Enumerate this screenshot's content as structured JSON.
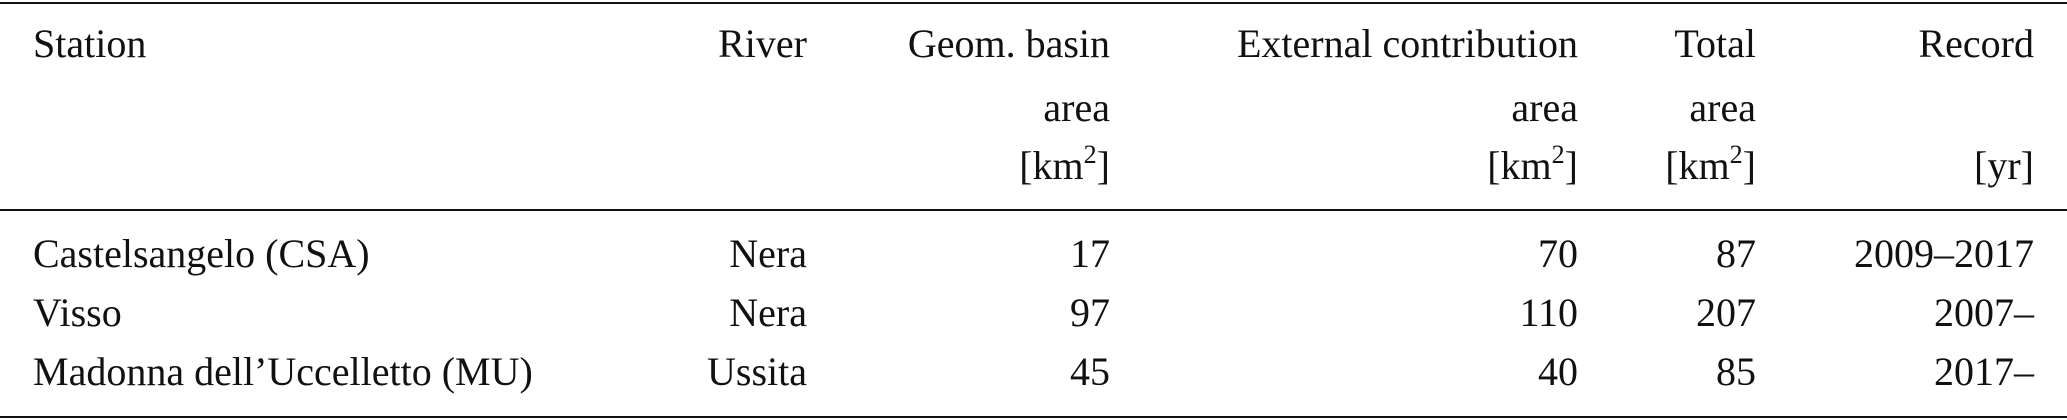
{
  "table": {
    "headers": [
      {
        "lines": [
          "Station"
        ]
      },
      {
        "lines": [
          "River"
        ]
      },
      {
        "lines": [
          "Geom. basin",
          "area"
        ],
        "unit": "km",
        "unit_sup": "2"
      },
      {
        "lines": [
          "External contribution",
          "area"
        ],
        "unit": "km",
        "unit_sup": "2"
      },
      {
        "lines": [
          "Total",
          "area"
        ],
        "unit": "km",
        "unit_sup": "2"
      },
      {
        "lines": [
          "Record"
        ],
        "unit": "yr"
      }
    ],
    "rows": [
      [
        "Castelsangelo (CSA)",
        "Nera",
        "17",
        "70",
        "87",
        "2009–2017"
      ],
      [
        "Visso",
        "Nera",
        "97",
        "110",
        "207",
        "2007–"
      ],
      [
        "Madonna dell’Uccelletto (MU)",
        "Ussita",
        "45",
        "40",
        "85",
        "2017–"
      ]
    ]
  }
}
